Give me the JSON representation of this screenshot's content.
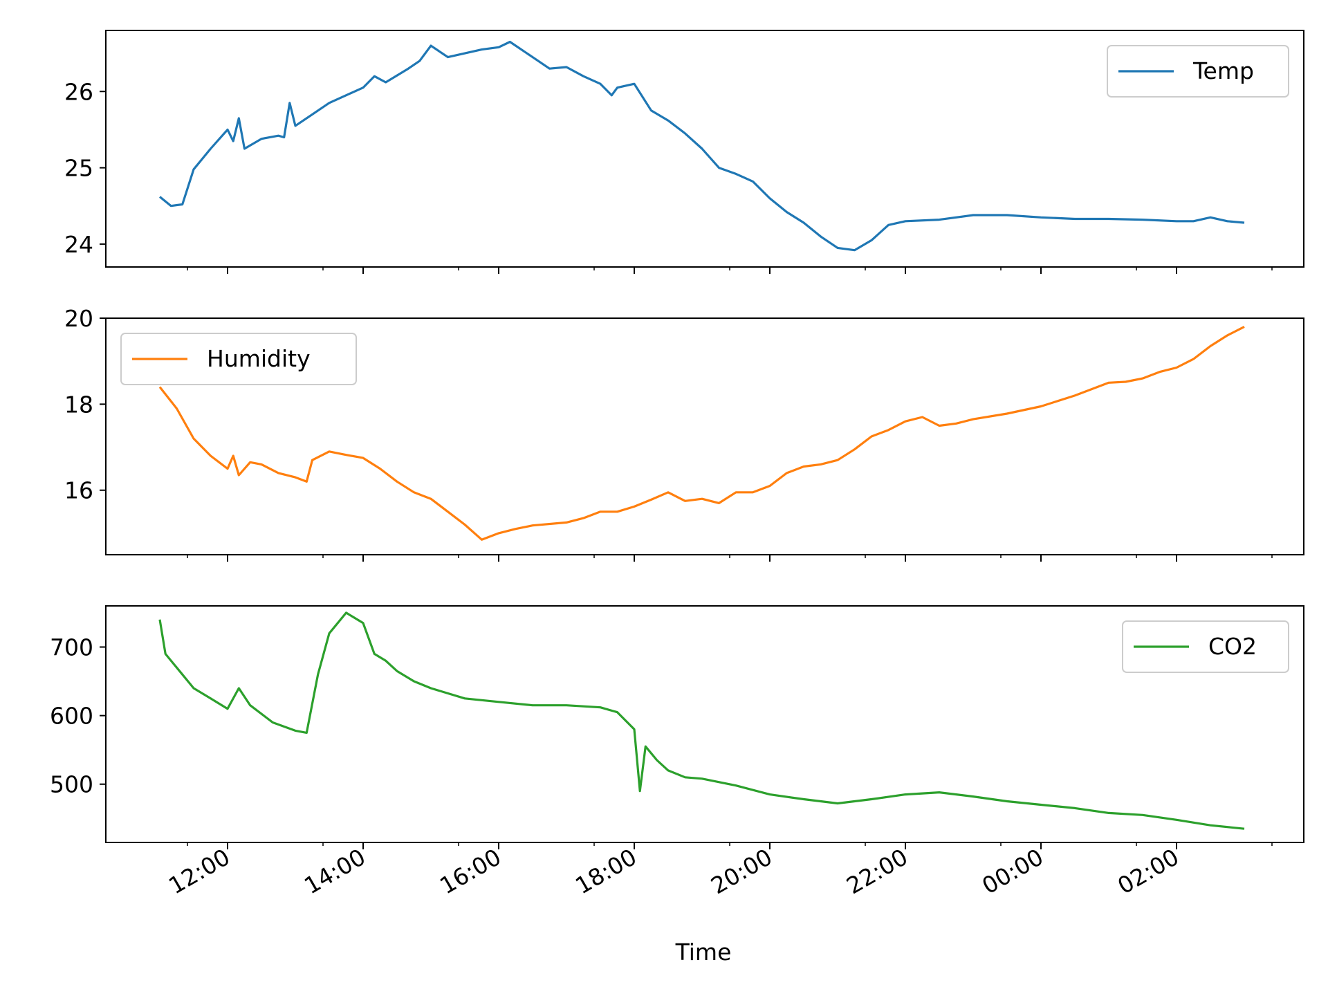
{
  "chart_data": [
    {
      "type": "line",
      "ylim": [
        23.7,
        26.8
      ],
      "yticks": [
        24,
        25,
        26
      ],
      "legend_position": "top-right",
      "grid": false,
      "series": [
        {
          "name": "Temp",
          "color": "#1f77b4",
          "points": [
            [
              "11:00",
              24.62
            ],
            [
              "11:10",
              24.5
            ],
            [
              "11:20",
              24.52
            ],
            [
              "11:30",
              24.98
            ],
            [
              "11:45",
              25.25
            ],
            [
              "12:00",
              25.5
            ],
            [
              "12:05",
              25.35
            ],
            [
              "12:10",
              25.65
            ],
            [
              "12:15",
              25.25
            ],
            [
              "12:30",
              25.38
            ],
            [
              "12:45",
              25.42
            ],
            [
              "12:50",
              25.4
            ],
            [
              "12:55",
              25.85
            ],
            [
              "13:00",
              25.55
            ],
            [
              "13:15",
              25.7
            ],
            [
              "13:30",
              25.85
            ],
            [
              "14:00",
              26.05
            ],
            [
              "14:10",
              26.2
            ],
            [
              "14:20",
              26.12
            ],
            [
              "14:40",
              26.3
            ],
            [
              "14:50",
              26.4
            ],
            [
              "15:00",
              26.6
            ],
            [
              "15:15",
              26.45
            ],
            [
              "15:30",
              26.5
            ],
            [
              "15:45",
              26.55
            ],
            [
              "16:00",
              26.58
            ],
            [
              "16:10",
              26.65
            ],
            [
              "16:20",
              26.55
            ],
            [
              "16:30",
              26.45
            ],
            [
              "16:45",
              26.3
            ],
            [
              "17:00",
              26.32
            ],
            [
              "17:15",
              26.2
            ],
            [
              "17:30",
              26.1
            ],
            [
              "17:40",
              25.95
            ],
            [
              "17:45",
              26.05
            ],
            [
              "18:00",
              26.1
            ],
            [
              "18:15",
              25.75
            ],
            [
              "18:30",
              25.62
            ],
            [
              "18:45",
              25.45
            ],
            [
              "19:00",
              25.25
            ],
            [
              "19:15",
              25.0
            ],
            [
              "19:30",
              24.92
            ],
            [
              "19:45",
              24.82
            ],
            [
              "20:00",
              24.6
            ],
            [
              "20:15",
              24.42
            ],
            [
              "20:30",
              24.28
            ],
            [
              "20:45",
              24.1
            ],
            [
              "21:00",
              23.95
            ],
            [
              "21:15",
              23.92
            ],
            [
              "21:30",
              24.05
            ],
            [
              "21:45",
              24.25
            ],
            [
              "22:00",
              24.3
            ],
            [
              "22:30",
              24.32
            ],
            [
              "23:00",
              24.38
            ],
            [
              "23:30",
              24.38
            ],
            [
              "00:00",
              24.35
            ],
            [
              "00:30",
              24.33
            ],
            [
              "01:00",
              24.33
            ],
            [
              "01:30",
              24.32
            ],
            [
              "02:00",
              24.3
            ],
            [
              "02:15",
              24.3
            ],
            [
              "02:30",
              24.35
            ],
            [
              "02:45",
              24.3
            ],
            [
              "03:00",
              24.28
            ]
          ]
        }
      ]
    },
    {
      "type": "line",
      "ylim": [
        14.5,
        20.0
      ],
      "yticks": [
        16,
        18,
        20
      ],
      "legend_position": "top-left",
      "grid": false,
      "series": [
        {
          "name": "Humidity",
          "color": "#ff7f0e",
          "points": [
            [
              "11:00",
              18.4
            ],
            [
              "11:15",
              17.9
            ],
            [
              "11:30",
              17.2
            ],
            [
              "11:45",
              16.8
            ],
            [
              "12:00",
              16.5
            ],
            [
              "12:05",
              16.8
            ],
            [
              "12:10",
              16.35
            ],
            [
              "12:20",
              16.65
            ],
            [
              "12:30",
              16.6
            ],
            [
              "12:45",
              16.4
            ],
            [
              "13:00",
              16.3
            ],
            [
              "13:10",
              16.2
            ],
            [
              "13:15",
              16.7
            ],
            [
              "13:30",
              16.9
            ],
            [
              "13:45",
              16.82
            ],
            [
              "14:00",
              16.75
            ],
            [
              "14:15",
              16.5
            ],
            [
              "14:30",
              16.2
            ],
            [
              "14:45",
              15.95
            ],
            [
              "15:00",
              15.8
            ],
            [
              "15:15",
              15.5
            ],
            [
              "15:30",
              15.2
            ],
            [
              "15:45",
              14.85
            ],
            [
              "16:00",
              15.0
            ],
            [
              "16:15",
              15.1
            ],
            [
              "16:30",
              15.18
            ],
            [
              "17:00",
              15.25
            ],
            [
              "17:15",
              15.35
            ],
            [
              "17:30",
              15.5
            ],
            [
              "17:45",
              15.5
            ],
            [
              "18:00",
              15.62
            ],
            [
              "18:15",
              15.78
            ],
            [
              "18:30",
              15.95
            ],
            [
              "18:45",
              15.75
            ],
            [
              "19:00",
              15.8
            ],
            [
              "19:15",
              15.7
            ],
            [
              "19:30",
              15.95
            ],
            [
              "19:45",
              15.95
            ],
            [
              "20:00",
              16.1
            ],
            [
              "20:15",
              16.4
            ],
            [
              "20:30",
              16.55
            ],
            [
              "20:45",
              16.6
            ],
            [
              "21:00",
              16.7
            ],
            [
              "21:15",
              16.95
            ],
            [
              "21:30",
              17.25
            ],
            [
              "21:45",
              17.4
            ],
            [
              "22:00",
              17.6
            ],
            [
              "22:15",
              17.7
            ],
            [
              "22:30",
              17.5
            ],
            [
              "22:45",
              17.55
            ],
            [
              "23:00",
              17.65
            ],
            [
              "23:30",
              17.78
            ],
            [
              "00:00",
              17.95
            ],
            [
              "00:30",
              18.2
            ],
            [
              "01:00",
              18.5
            ],
            [
              "01:15",
              18.52
            ],
            [
              "01:30",
              18.6
            ],
            [
              "01:45",
              18.75
            ],
            [
              "02:00",
              18.85
            ],
            [
              "02:15",
              19.05
            ],
            [
              "02:30",
              19.35
            ],
            [
              "02:45",
              19.6
            ],
            [
              "03:00",
              19.8
            ]
          ]
        }
      ]
    },
    {
      "type": "line",
      "ylim": [
        415,
        760
      ],
      "yticks": [
        500,
        600,
        700
      ],
      "legend_position": "top-right",
      "grid": false,
      "series": [
        {
          "name": "CO2",
          "color": "#2ca02c",
          "points": [
            [
              "11:00",
              740
            ],
            [
              "11:05",
              690
            ],
            [
              "11:15",
              670
            ],
            [
              "11:30",
              640
            ],
            [
              "11:45",
              625
            ],
            [
              "12:00",
              610
            ],
            [
              "12:10",
              640
            ],
            [
              "12:20",
              615
            ],
            [
              "12:40",
              590
            ],
            [
              "13:00",
              578
            ],
            [
              "13:10",
              575
            ],
            [
              "13:20",
              660
            ],
            [
              "13:30",
              720
            ],
            [
              "13:45",
              750
            ],
            [
              "14:00",
              735
            ],
            [
              "14:10",
              690
            ],
            [
              "14:20",
              680
            ],
            [
              "14:30",
              665
            ],
            [
              "14:45",
              650
            ],
            [
              "15:00",
              640
            ],
            [
              "15:30",
              625
            ],
            [
              "16:00",
              620
            ],
            [
              "16:30",
              615
            ],
            [
              "17:00",
              615
            ],
            [
              "17:30",
              612
            ],
            [
              "17:45",
              605
            ],
            [
              "18:00",
              580
            ],
            [
              "18:05",
              490
            ],
            [
              "18:10",
              555
            ],
            [
              "18:20",
              535
            ],
            [
              "18:30",
              520
            ],
            [
              "18:45",
              510
            ],
            [
              "19:00",
              508
            ],
            [
              "19:30",
              498
            ],
            [
              "20:00",
              485
            ],
            [
              "20:30",
              478
            ],
            [
              "21:00",
              472
            ],
            [
              "21:30",
              478
            ],
            [
              "22:00",
              485
            ],
            [
              "22:30",
              488
            ],
            [
              "23:00",
              482
            ],
            [
              "23:30",
              475
            ],
            [
              "00:00",
              470
            ],
            [
              "00:30",
              465
            ],
            [
              "01:00",
              458
            ],
            [
              "01:30",
              455
            ],
            [
              "02:00",
              448
            ],
            [
              "02:30",
              440
            ],
            [
              "03:00",
              435
            ]
          ]
        }
      ]
    }
  ],
  "x_axis": {
    "label": "Time",
    "ticks": [
      "12:00",
      "14:00",
      "16:00",
      "18:00",
      "20:00",
      "22:00",
      "00:00",
      "02:00"
    ]
  }
}
